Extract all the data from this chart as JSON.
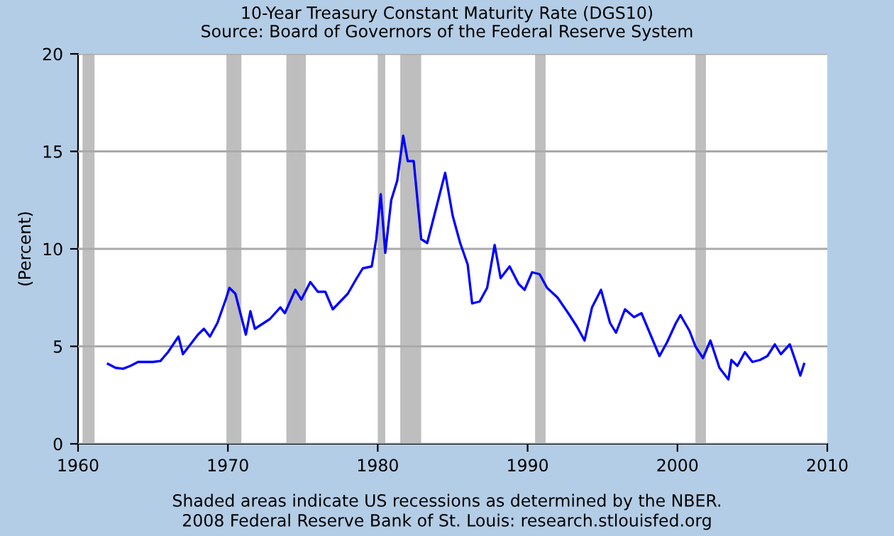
{
  "chart_data": {
    "type": "line",
    "title": "10-Year Treasury Constant Maturity Rate (DGS10)",
    "subtitle": "Source: Board of Governors of the Federal Reserve System",
    "ylabel": "(Percent)",
    "annotations": [
      "Shaded areas indicate US recessions as determined by the NBER.",
      "2008 Federal Reserve Bank of St. Louis: research.stlouisfed.org"
    ],
    "x": [
      1962.0,
      1962.5,
      1963.0,
      1963.5,
      1964.0,
      1964.5,
      1965.0,
      1965.5,
      1966.0,
      1966.7,
      1967.0,
      1967.5,
      1968.0,
      1968.4,
      1968.8,
      1969.3,
      1969.9,
      1970.1,
      1970.5,
      1970.9,
      1971.2,
      1971.5,
      1971.8,
      1972.2,
      1972.8,
      1973.5,
      1973.8,
      1974.5,
      1974.9,
      1975.5,
      1976.0,
      1976.5,
      1977.0,
      1977.5,
      1978.0,
      1978.6,
      1979.0,
      1979.6,
      1979.9,
      1980.2,
      1980.5,
      1980.9,
      1981.3,
      1981.7,
      1982.0,
      1982.4,
      1982.9,
      1983.3,
      1983.8,
      1984.5,
      1985.0,
      1985.5,
      1986.0,
      1986.3,
      1986.8,
      1987.3,
      1987.8,
      1988.2,
      1988.8,
      1989.4,
      1989.8,
      1990.3,
      1990.8,
      1991.3,
      1992.0,
      1992.8,
      1993.3,
      1993.8,
      1994.3,
      1994.9,
      1995.5,
      1995.9,
      1996.5,
      1997.1,
      1997.6,
      1998.2,
      1998.8,
      1999.3,
      1999.9,
      2000.2,
      2000.8,
      2001.2,
      2001.7,
      2002.2,
      2002.8,
      2003.4,
      2003.6,
      2004.0,
      2004.5,
      2005.0,
      2005.5,
      2006.0,
      2006.5,
      2006.9,
      2007.5,
      2007.9,
      2008.2,
      2008.45
    ],
    "series": [
      {
        "color": "#0000ff",
        "values": [
          4.1,
          3.9,
          3.85,
          4.0,
          4.2,
          4.2,
          4.2,
          4.25,
          4.7,
          5.5,
          4.6,
          5.1,
          5.6,
          5.9,
          5.5,
          6.2,
          7.5,
          8.0,
          7.7,
          6.5,
          5.6,
          6.8,
          5.9,
          6.1,
          6.4,
          7.0,
          6.7,
          7.9,
          7.4,
          8.3,
          7.8,
          7.8,
          6.9,
          7.3,
          7.7,
          8.5,
          9.0,
          9.1,
          10.5,
          12.8,
          9.8,
          12.5,
          13.5,
          15.8,
          14.5,
          14.5,
          10.5,
          10.3,
          11.8,
          13.9,
          11.7,
          10.3,
          9.2,
          7.2,
          7.3,
          8.0,
          10.2,
          8.5,
          9.1,
          8.2,
          7.9,
          8.8,
          8.7,
          8.0,
          7.5,
          6.6,
          6.0,
          5.3,
          7.0,
          7.9,
          6.2,
          5.7,
          6.9,
          6.5,
          6.7,
          5.6,
          4.5,
          5.2,
          6.2,
          6.6,
          5.8,
          5.0,
          4.4,
          5.3,
          3.9,
          3.3,
          4.3,
          4.0,
          4.7,
          4.2,
          4.3,
          4.5,
          5.1,
          4.6,
          5.1,
          4.2,
          3.5,
          4.1
        ]
      }
    ],
    "xlim": [
      1960,
      2010
    ],
    "xticks": [
      1960,
      1970,
      1980,
      1990,
      2000,
      2010
    ],
    "ylim": [
      0,
      20
    ],
    "yticks": [
      0,
      5,
      10,
      15,
      20
    ],
    "grid": "y",
    "legend": false,
    "bands": [
      {
        "axis": "x",
        "from": 1960.3,
        "to": 1961.1,
        "color": "#bebebe"
      },
      {
        "axis": "x",
        "from": 1969.9,
        "to": 1970.9,
        "color": "#bebebe"
      },
      {
        "axis": "x",
        "from": 1973.9,
        "to": 1975.2,
        "color": "#bebebe"
      },
      {
        "axis": "x",
        "from": 1980.0,
        "to": 1980.5,
        "color": "#bebebe"
      },
      {
        "axis": "x",
        "from": 1981.5,
        "to": 1982.9,
        "color": "#bebebe"
      },
      {
        "axis": "x",
        "from": 1990.5,
        "to": 1991.2,
        "color": "#bebebe"
      },
      {
        "axis": "x",
        "from": 2001.2,
        "to": 2001.9,
        "color": "#bebebe"
      }
    ]
  }
}
